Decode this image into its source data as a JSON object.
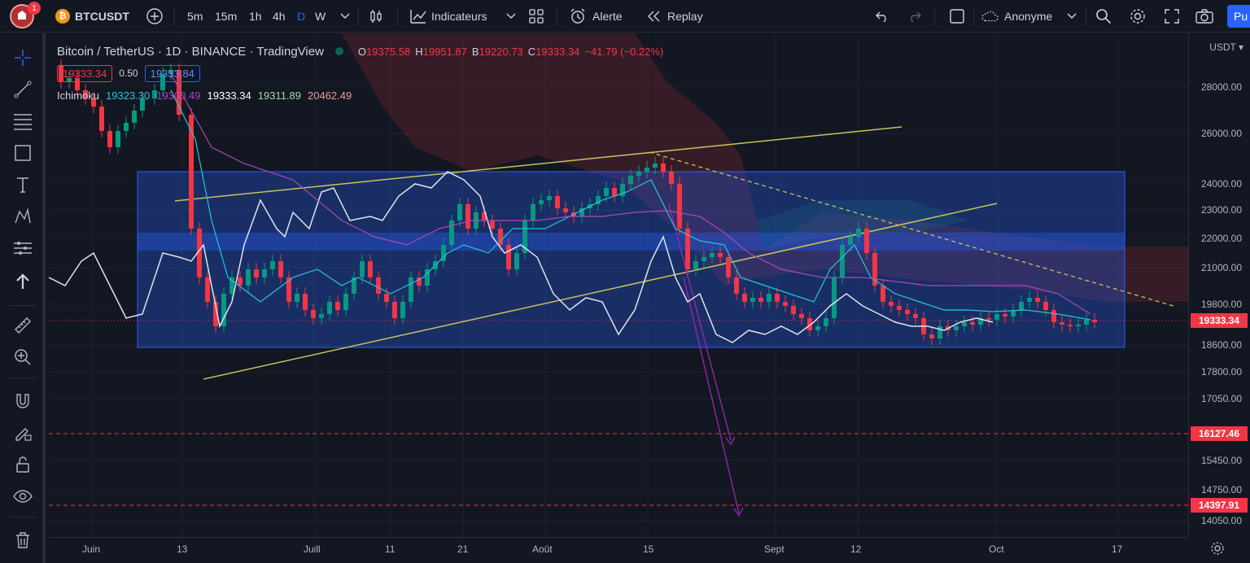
{
  "topbar": {
    "notifications": "1",
    "symbol": "BTCUSDT",
    "intervals": [
      "5m",
      "15m",
      "1h",
      "4h",
      "D",
      "W"
    ],
    "active_interval": "D",
    "indicators": "Indicateurs",
    "alert": "Alerte",
    "replay": "Replay",
    "layout_name": "Anonyme",
    "publish": "Pu"
  },
  "legend": {
    "title": "Bitcoin / TetherUS · 1D · BINANCE · TradingView",
    "o_label": "O",
    "o": "19375.58",
    "h_label": "H",
    "h": "19951.87",
    "b_label": "B",
    "b": "19220.73",
    "c_label": "C",
    "c": "19333.34",
    "change": "−41.79 (−0.22%)",
    "bid": "19333.34",
    "spread": "0.50",
    "ask": "19333.84",
    "ichimoku_label": "Ichimoku",
    "ichimoku_values": [
      "19323.30",
      "19300.49",
      "19333.34",
      "19311.89",
      "20462.49"
    ],
    "ichimoku_colors": [
      "#26c6da",
      "#ab47bc",
      "#ffffff",
      "#a5d6a7",
      "#ef9a9a"
    ]
  },
  "price_axis": {
    "currency": "USDT",
    "ticks": [
      "28000.00",
      "26000.00",
      "24000.00",
      "23000.00",
      "22000.00",
      "21000.00",
      "19800.00",
      "18600.00",
      "17800.00",
      "17050.00",
      "15450.00",
      "14750.00",
      "14050.00"
    ],
    "current_price": "19333.34",
    "level_1": "16127.46",
    "level_2": "14397.91"
  },
  "time_axis": {
    "labels": [
      "Juin",
      "13",
      "Juill",
      "11",
      "21",
      "Août",
      "15",
      "Sept",
      "12",
      "Oct",
      "17"
    ]
  },
  "colors": {
    "up": "#089981",
    "down": "#f23645",
    "rectangle": "#2962ff",
    "trendline": "#c9c35a",
    "projection": "#9c27b0"
  },
  "chart_data": {
    "type": "candlestick",
    "symbol": "BTCUSDT",
    "interval": "1D",
    "x": [
      "Juin",
      "13",
      "Juill",
      "11",
      "21",
      "Août",
      "15",
      "Sept",
      "12",
      "Oct",
      "17"
    ],
    "ohlc_last": {
      "open": 19375.58,
      "high": 19951.87,
      "low": 19220.73,
      "close": 19333.34
    },
    "horizontal_levels": [
      16127.46,
      14397.91
    ],
    "range_box": [
      18600,
      24300
    ]
  }
}
